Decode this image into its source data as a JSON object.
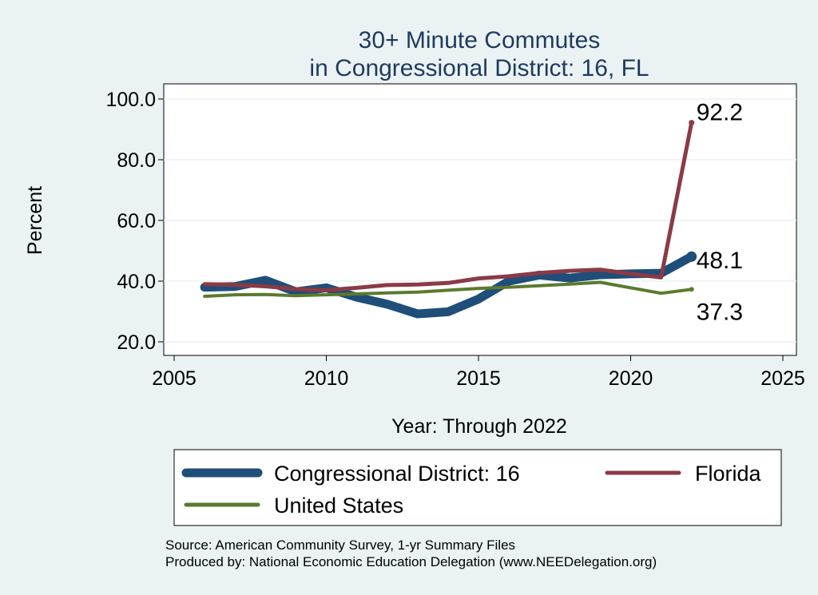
{
  "chart_data": {
    "type": "line",
    "title": [
      "30+ Minute Commutes",
      "in Congressional District:  16, FL"
    ],
    "xlabel": "Year: Through 2022",
    "ylabel": "Percent",
    "xlim": [
      2005,
      2025
    ],
    "ylim": [
      20,
      100
    ],
    "xticks": [
      2005,
      2010,
      2015,
      2020,
      2025
    ],
    "yticks": [
      20,
      40,
      60,
      80,
      100
    ],
    "ytick_labels": [
      "20.0",
      "40.0",
      "60.0",
      "80.0",
      "100.0"
    ],
    "x": [
      2006,
      2007,
      2008,
      2009,
      2010,
      2011,
      2012,
      2013,
      2014,
      2015,
      2016,
      2017,
      2018,
      2019,
      2020,
      2021,
      2022
    ],
    "grid": true,
    "legend_position": "bottom",
    "series": [
      {
        "name": "Congressional District:  16",
        "color": "#1f4e79",
        "values": [
          38.0,
          38.2,
          40.3,
          36.5,
          37.8,
          34.7,
          32.4,
          29.2,
          29.9,
          34.1,
          40.0,
          42.0,
          41.0,
          42.1,
          42.4,
          42.6,
          48.1
        ],
        "end_label": "48.1"
      },
      {
        "name": "Florida",
        "color": "#8b3a46",
        "values": [
          39.0,
          38.8,
          38.3,
          37.4,
          37.0,
          37.8,
          38.7,
          38.9,
          39.4,
          40.9,
          41.6,
          42.7,
          43.4,
          43.8,
          42.4,
          41.2,
          92.2
        ],
        "end_label": "92.2"
      },
      {
        "name": "United States",
        "color": "#5b7a2e",
        "values": [
          35.0,
          35.5,
          35.6,
          35.2,
          35.5,
          35.8,
          36.1,
          36.4,
          37.0,
          37.6,
          38.0,
          38.5,
          39.0,
          39.6,
          null,
          36.0,
          37.3
        ],
        "end_label": "37.3"
      }
    ]
  },
  "source": {
    "line1": "Source: American Community Survey, 1-yr Summary Files",
    "line2": "Produced by: National Economic Education Delegation (www.NEEDelegation.org)"
  }
}
